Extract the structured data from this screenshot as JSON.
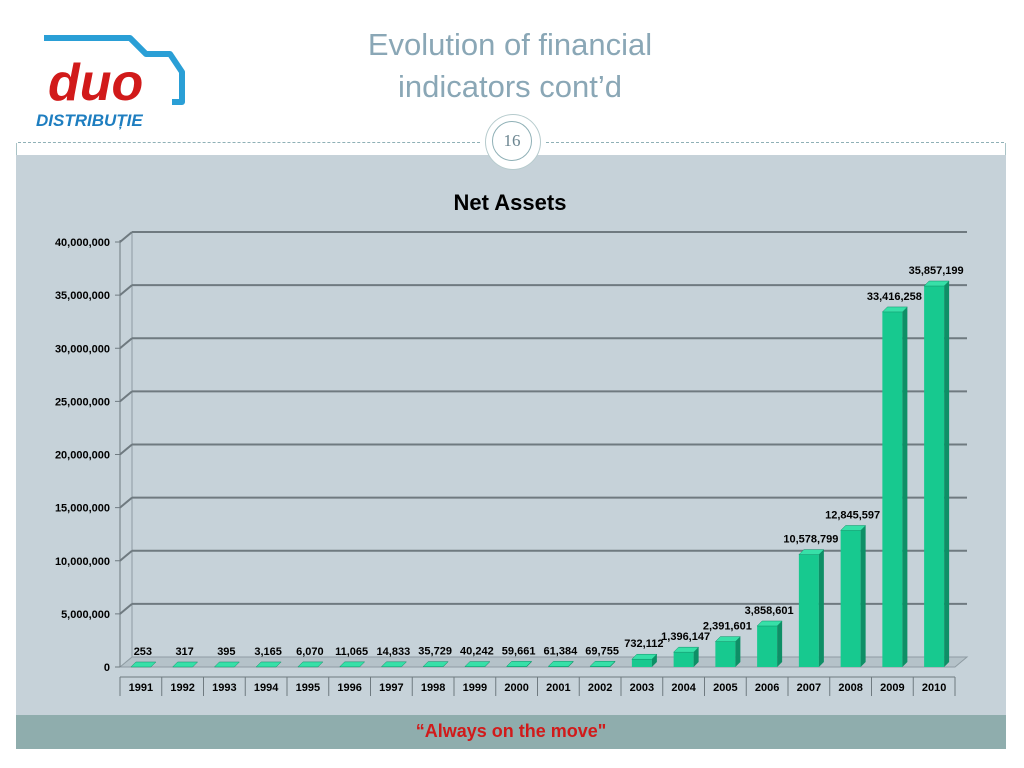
{
  "brand": {
    "logo_main": "duo",
    "logo_sub": "DISTRIBUȚIE"
  },
  "slide": {
    "title_line1": "Evolution of financial",
    "title_line2": "indicators cont’d",
    "page_number": "16",
    "footer_text": "“Always on the move\""
  },
  "colors": {
    "accent_red": "#d11a1a",
    "bar_green": "#17c98f",
    "logo_blue": "#2a9fd6",
    "background_panel": "#c6d2d9"
  },
  "chart_data": {
    "type": "bar",
    "title": "Net Assets",
    "xlabel": "",
    "ylabel": "",
    "ylim": [
      0,
      40000000
    ],
    "ytick_values": [
      0,
      5000000,
      10000000,
      15000000,
      20000000,
      25000000,
      30000000,
      35000000,
      40000000
    ],
    "ytick_labels": [
      "0",
      "5,000,000",
      "10,000,000",
      "15,000,000",
      "20,000,000",
      "25,000,000",
      "30,000,000",
      "35,000,000",
      "40,000,000"
    ],
    "categories": [
      "1991",
      "1992",
      "1993",
      "1994",
      "1995",
      "1996",
      "1997",
      "1998",
      "1999",
      "2000",
      "2001",
      "2002",
      "2003",
      "2004",
      "2005",
      "2006",
      "2007",
      "2008",
      "2009",
      "2010"
    ],
    "values": [
      253,
      317,
      395,
      3165,
      6070,
      11065,
      14833,
      35729,
      40242,
      59661,
      61384,
      69755,
      732112,
      1396147,
      2391601,
      3858601,
      10578799,
      12845597,
      33416258,
      35857199
    ],
    "value_labels": [
      "253",
      "317",
      "395",
      "3,165",
      "6,070",
      "11,065",
      "14,833",
      "35,729",
      "40,242",
      "59,661",
      "61,384",
      "69,755",
      "732,112",
      "1,396,147",
      "2,391,601",
      "3,858,601",
      "10,578,799",
      "12,845,597",
      "33,416,258",
      "35,857,199"
    ],
    "grid": true,
    "legend": "none",
    "style": "3d-bar"
  }
}
